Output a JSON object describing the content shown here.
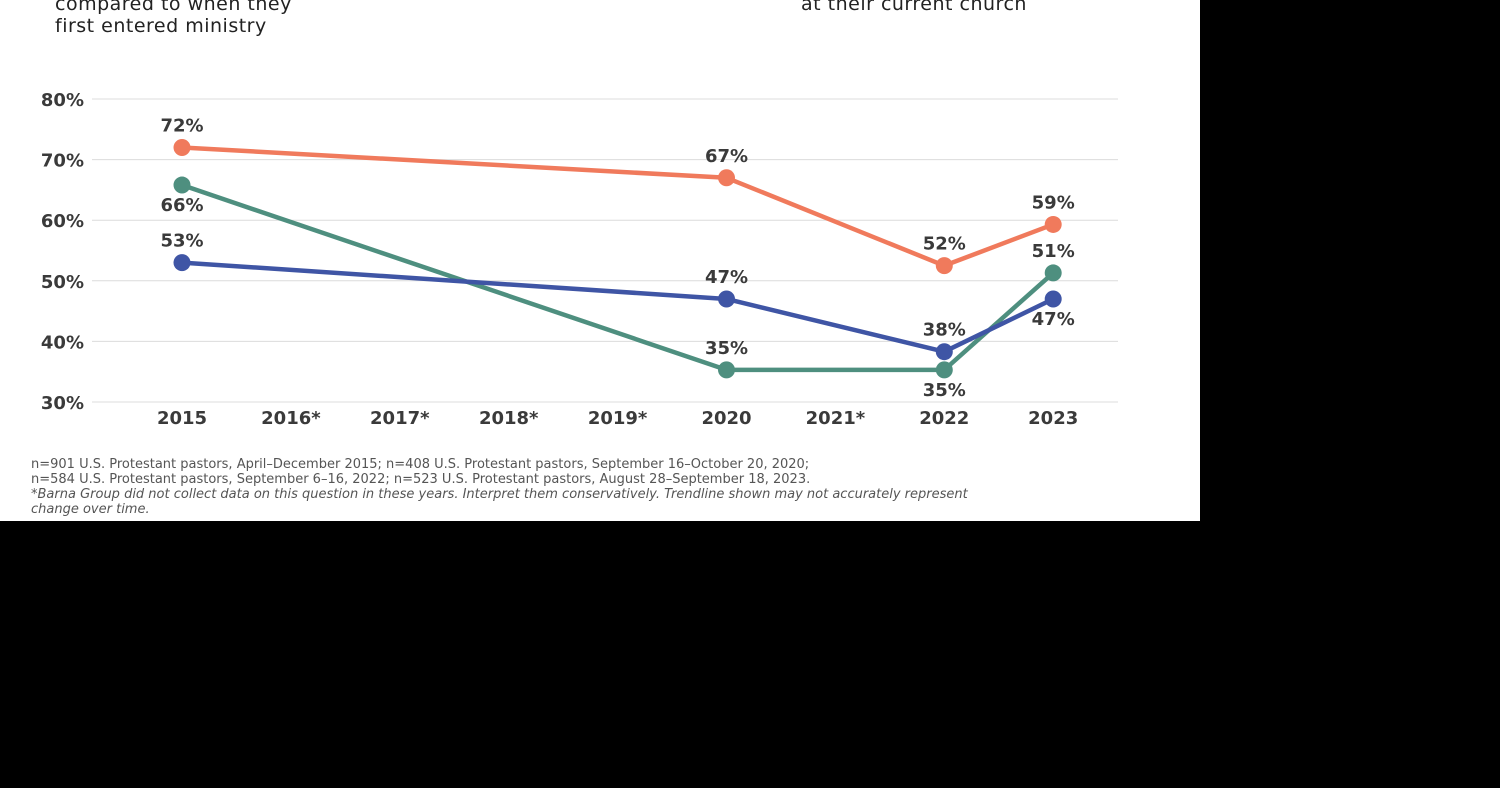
{
  "legend": {
    "left_lines": [
      "compared to when they",
      "first entered ministry"
    ],
    "right_lines": [
      "at their current church"
    ]
  },
  "footnotes": {
    "line1": "n=901 U.S. Protestant pastors, April–December 2015; n=408 U.S. Protestant pastors, September 16–October 20, 2020;",
    "line2": "n=584 U.S. Protestant pastors, September 6–16, 2022; n=523 U.S. Protestant pastors, August 28–September 18, 2023.",
    "line3": "*Barna Group did not collect data on this question in these years. Interpret them conservatively. Trendline shown may not accurately represent",
    "line4": "change over time."
  },
  "chart_data": {
    "type": "line",
    "categories": [
      "2015",
      "2016*",
      "2017*",
      "2018*",
      "2019*",
      "2020",
      "2021*",
      "2022",
      "2023"
    ],
    "ylim": [
      30,
      80
    ],
    "yticks": [
      30,
      40,
      50,
      60,
      70,
      80
    ],
    "ytick_labels": [
      "30%",
      "40%",
      "50%",
      "60%",
      "70%",
      "80%"
    ],
    "grid": true,
    "series": [
      {
        "color": "#F07A5C",
        "points": [
          {
            "category": "2015",
            "value": 72,
            "label": "72%",
            "label_pos": "above"
          },
          {
            "category": "2020",
            "value": 67,
            "label": "67%",
            "label_pos": "above"
          },
          {
            "category": "2022",
            "value": 52.5,
            "label": "52%",
            "label_pos": "above"
          },
          {
            "category": "2023",
            "value": 59.3,
            "label": "59%",
            "label_pos": "above"
          }
        ]
      },
      {
        "color": "#4E8F7F",
        "points": [
          {
            "category": "2015",
            "value": 65.8,
            "label": "66%",
            "label_pos": "below"
          },
          {
            "category": "2020",
            "value": 35.3,
            "label": "35%",
            "label_pos": "above"
          },
          {
            "category": "2022",
            "value": 35.3,
            "label": "35%",
            "label_pos": "below"
          },
          {
            "category": "2023",
            "value": 51.3,
            "label": "51%",
            "label_pos": "above"
          }
        ]
      },
      {
        "color": "#3F55A5",
        "points": [
          {
            "category": "2015",
            "value": 53,
            "label": "53%",
            "label_pos": "above"
          },
          {
            "category": "2020",
            "value": 47,
            "label": "47%",
            "label_pos": "above"
          },
          {
            "category": "2022",
            "value": 38.3,
            "label": "38%",
            "label_pos": "above"
          },
          {
            "category": "2023",
            "value": 47,
            "label": "47%",
            "label_pos": "below"
          }
        ]
      }
    ]
  }
}
